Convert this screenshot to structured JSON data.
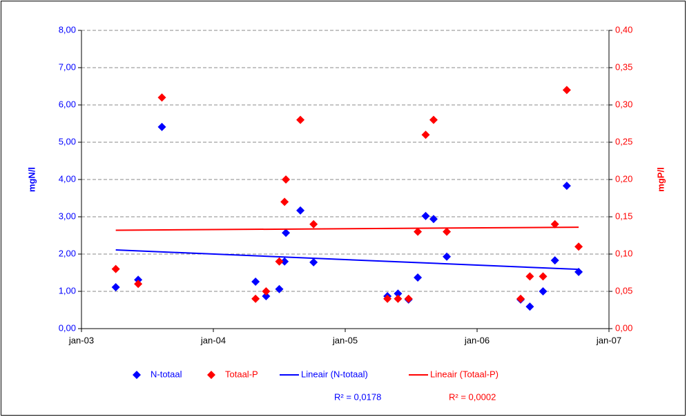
{
  "chart_data": {
    "type": "scatter",
    "xlim": [
      2003,
      2007
    ],
    "xticks": [
      {
        "value": 2003,
        "label": "jan-03"
      },
      {
        "value": 2004,
        "label": "jan-04"
      },
      {
        "value": 2005,
        "label": "jan-05"
      },
      {
        "value": 2006,
        "label": "jan-06"
      },
      {
        "value": 2007,
        "label": "jan-07"
      }
    ],
    "ylim": [
      0,
      8
    ],
    "yticks": [
      {
        "value": 0,
        "label": "0,00"
      },
      {
        "value": 1,
        "label": "1,00"
      },
      {
        "value": 2,
        "label": "2,00"
      },
      {
        "value": 3,
        "label": "3,00"
      },
      {
        "value": 4,
        "label": "4,00"
      },
      {
        "value": 5,
        "label": "5,00"
      },
      {
        "value": 6,
        "label": "6,00"
      },
      {
        "value": 7,
        "label": "7,00"
      },
      {
        "value": 8,
        "label": "8,00"
      }
    ],
    "y2lim": [
      0,
      0.4
    ],
    "y2ticks": [
      {
        "value": 0,
        "label": "0,00"
      },
      {
        "value": 0.05,
        "label": "0,05"
      },
      {
        "value": 0.1,
        "label": "0,10"
      },
      {
        "value": 0.15,
        "label": "0,15"
      },
      {
        "value": 0.2,
        "label": "0,20"
      },
      {
        "value": 0.25,
        "label": "0,25"
      },
      {
        "value": 0.3,
        "label": "0,30"
      },
      {
        "value": 0.35,
        "label": "0,35"
      },
      {
        "value": 0.4,
        "label": "0,40"
      }
    ],
    "y_label": "mgN/l",
    "y2_label": "mgP/l",
    "grid": true,
    "legend": "bottom",
    "series": [
      {
        "name": "N-totaal",
        "type": "scatter",
        "color": "#0000ff",
        "x": [
          2003.26,
          2003.43,
          2003.61,
          2004.32,
          2004.4,
          2004.5,
          2004.54,
          2004.55,
          2004.66,
          2004.76,
          2005.32,
          2005.4,
          2005.48,
          2005.55,
          2005.61,
          2005.67,
          2005.77,
          2006.33,
          2006.4,
          2006.5,
          2006.59,
          2006.68,
          2006.77
        ],
        "values": [
          1.11,
          1.31,
          5.41,
          1.26,
          0.87,
          1.06,
          1.8,
          2.57,
          3.17,
          1.78,
          0.87,
          0.94,
          0.78,
          1.37,
          3.02,
          2.94,
          1.93,
          0.78,
          0.59,
          1.0,
          1.83,
          3.83,
          1.52
        ]
      },
      {
        "name": "Totaal-P",
        "type": "scatter",
        "color": "#ff0000",
        "axis": "y2",
        "x": [
          2003.26,
          2003.43,
          2003.61,
          2004.32,
          2004.4,
          2004.5,
          2004.54,
          2004.55,
          2004.66,
          2004.76,
          2005.32,
          2005.4,
          2005.48,
          2005.55,
          2005.61,
          2005.67,
          2005.77,
          2006.33,
          2006.4,
          2006.5,
          2006.59,
          2006.68,
          2006.77
        ],
        "values": [
          0.08,
          0.06,
          0.31,
          0.04,
          0.05,
          0.09,
          0.17,
          0.2,
          0.28,
          0.14,
          0.04,
          0.04,
          0.04,
          0.13,
          0.26,
          0.28,
          0.13,
          0.04,
          0.07,
          0.07,
          0.14,
          0.32,
          0.11
        ]
      },
      {
        "name": "Lineair (N-totaal)",
        "type": "line",
        "color": "#0000ff",
        "x": [
          2003.26,
          2006.77
        ],
        "values": [
          2.11,
          1.59
        ]
      },
      {
        "name": "Lineair (Totaal-P)",
        "type": "line",
        "color": "#ff0000",
        "axis": "y2",
        "x": [
          2003.26,
          2006.77
        ],
        "values": [
          0.132,
          0.136
        ]
      }
    ],
    "annotations": [
      {
        "text": "R² = 0,0178",
        "color": "#0000ff"
      },
      {
        "text": "R² = 0,0002",
        "color": "#ff0000"
      }
    ]
  }
}
